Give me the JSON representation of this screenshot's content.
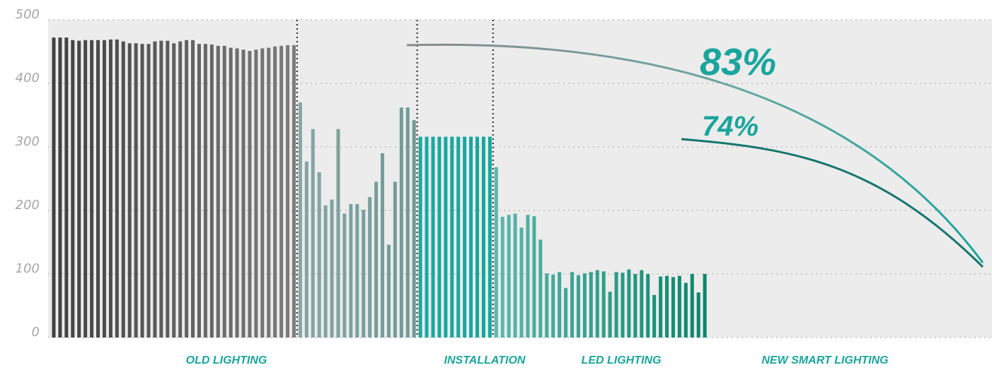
{
  "chart_data": {
    "type": "bar",
    "ylim": [
      0,
      500
    ],
    "y_ticks": [
      "0",
      "100",
      "200",
      "300",
      "400",
      "500"
    ],
    "grid": true,
    "phases": [
      {
        "name": "OLD LIGHTING",
        "color_start": "#404040",
        "color_end": "#7c7c7c",
        "values": [
          472,
          472,
          472,
          468,
          467,
          468,
          468,
          468,
          468,
          469,
          469,
          466,
          463,
          463,
          462,
          462,
          466,
          467,
          467,
          463,
          466,
          468,
          468,
          462,
          462,
          461,
          459,
          459,
          456,
          455,
          453,
          451,
          453,
          455,
          456,
          458,
          459,
          460,
          460
        ]
      },
      {
        "name": "INSTALLATION",
        "color_start": "#86a6a4",
        "color_end": "#6f9a97",
        "values": [
          370,
          277,
          328,
          260,
          208,
          217,
          328,
          195,
          210,
          210,
          201,
          221,
          245,
          290,
          146,
          245,
          362,
          362,
          342
        ]
      },
      {
        "name": "LED LIGHTING",
        "color_start": "#1aa9a1",
        "color_end": "#14a89f",
        "values": [
          316,
          316,
          316,
          316,
          316,
          316,
          316,
          316,
          316,
          316,
          316,
          316
        ]
      },
      {
        "name": "NEW SMART LIGHTING",
        "color_start": "#5ab7ad",
        "color_end": "#08866a",
        "values": [
          268,
          190,
          193,
          195,
          173,
          193,
          191,
          154,
          101,
          99,
          103,
          78,
          103,
          98,
          101,
          103,
          106,
          104,
          72,
          103,
          102,
          107,
          100,
          106,
          100,
          67,
          96,
          97,
          95,
          97,
          86,
          100,
          71,
          100
        ]
      }
    ],
    "annotations": [
      {
        "text": "83%",
        "color": "#1aa59d"
      },
      {
        "text": "74%",
        "color": "#1aa59d"
      }
    ],
    "curve_colors": [
      "#8a8a8a",
      "#1aa59d",
      "#14766d"
    ]
  }
}
